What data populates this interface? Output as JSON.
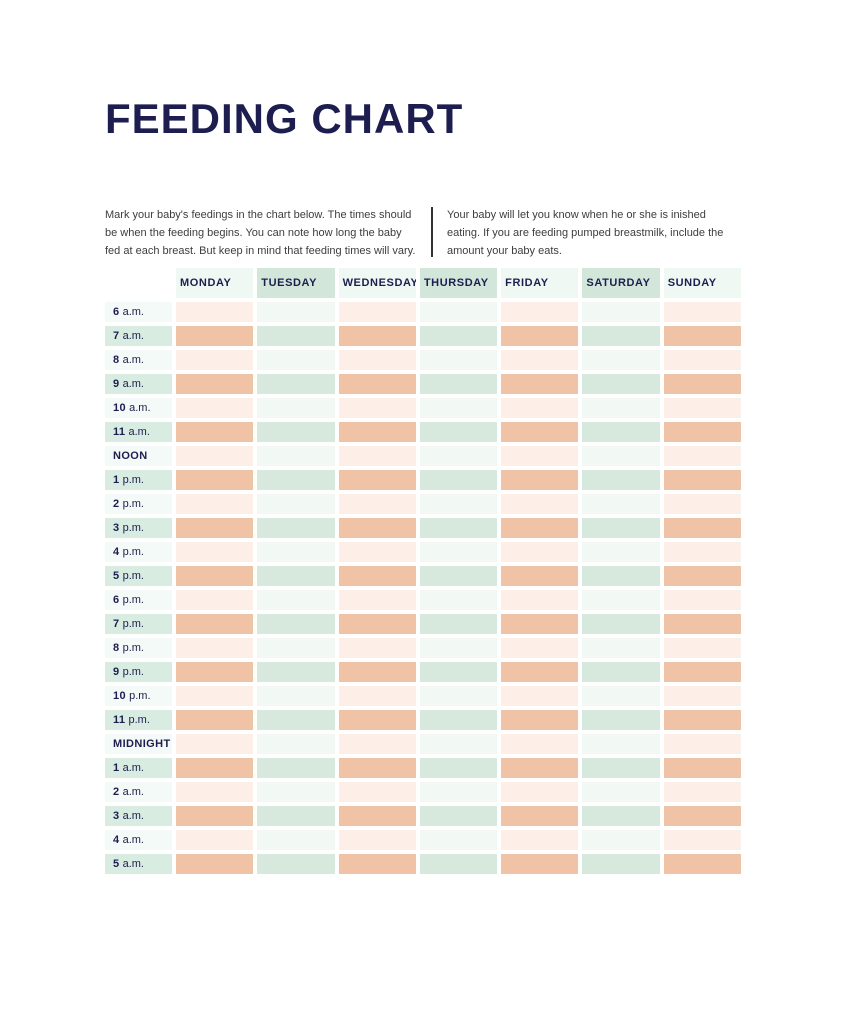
{
  "page": {
    "title": "FEEDING CHART"
  },
  "intro": {
    "left": "Mark your baby's feedings in the chart below. The times should be when the feeding begins. You can note how long the baby fed at each breast. But keep in mind that feeding times will vary.",
    "right": "Your baby will let you know when he or she is inished eating. If you are feeding pumped breastmilk, include the amount your baby eats."
  },
  "table": {
    "days": [
      {
        "label": "MONDAY",
        "family": "peach"
      },
      {
        "label": "TUESDAY",
        "family": "mint"
      },
      {
        "label": "WEDNESDAY",
        "family": "peach"
      },
      {
        "label": "THURSDAY",
        "family": "mint"
      },
      {
        "label": "FRIDAY",
        "family": "peach"
      },
      {
        "label": "SATURDAY",
        "family": "mint"
      },
      {
        "label": "SUNDAY",
        "family": "peach"
      }
    ],
    "rows": [
      {
        "time": "6",
        "unit": "a.m.",
        "shade": "light"
      },
      {
        "time": "7",
        "unit": "a.m.",
        "shade": "dark"
      },
      {
        "time": "8",
        "unit": "a.m.",
        "shade": "light"
      },
      {
        "time": "9",
        "unit": "a.m.",
        "shade": "dark"
      },
      {
        "time": "10",
        "unit": "a.m.",
        "shade": "light"
      },
      {
        "time": "11",
        "unit": "a.m.",
        "shade": "dark"
      },
      {
        "time": "NOON",
        "unit": "",
        "shade": "light"
      },
      {
        "time": "1",
        "unit": "p.m.",
        "shade": "dark"
      },
      {
        "time": "2",
        "unit": "p.m.",
        "shade": "light"
      },
      {
        "time": "3",
        "unit": "p.m.",
        "shade": "dark"
      },
      {
        "time": "4",
        "unit": "p.m.",
        "shade": "light"
      },
      {
        "time": "5",
        "unit": "p.m.",
        "shade": "dark"
      },
      {
        "time": "6",
        "unit": "p.m.",
        "shade": "light"
      },
      {
        "time": "7",
        "unit": "p.m.",
        "shade": "dark"
      },
      {
        "time": "8",
        "unit": "p.m.",
        "shade": "light"
      },
      {
        "time": "9",
        "unit": "p.m.",
        "shade": "dark"
      },
      {
        "time": "10",
        "unit": "p.m.",
        "shade": "light"
      },
      {
        "time": "11",
        "unit": "p.m.",
        "shade": "dark"
      },
      {
        "time": "MIDNIGHT",
        "unit": "",
        "shade": "light"
      },
      {
        "time": "1",
        "unit": "a.m.",
        "shade": "dark"
      },
      {
        "time": "2",
        "unit": "a.m.",
        "shade": "light"
      },
      {
        "time": "3",
        "unit": "a.m.",
        "shade": "dark"
      },
      {
        "time": "4",
        "unit": "a.m.",
        "shade": "light"
      },
      {
        "time": "5",
        "unit": "a.m.",
        "shade": "dark"
      }
    ]
  },
  "colors": {
    "navy": "#1d1e4f",
    "textGray": "#3d3d3d",
    "divider": "#333333",
    "salmon": "#f1c3a6",
    "peachLight": "#fdefe7",
    "mint": "#d7e9dd",
    "mintLight": "#f2f9f5",
    "headerMint": "#d2e6d9",
    "headerLight": "#f0f8f3",
    "labelMint": "#d9ece2",
    "labelLight": "#f4faf7"
  }
}
